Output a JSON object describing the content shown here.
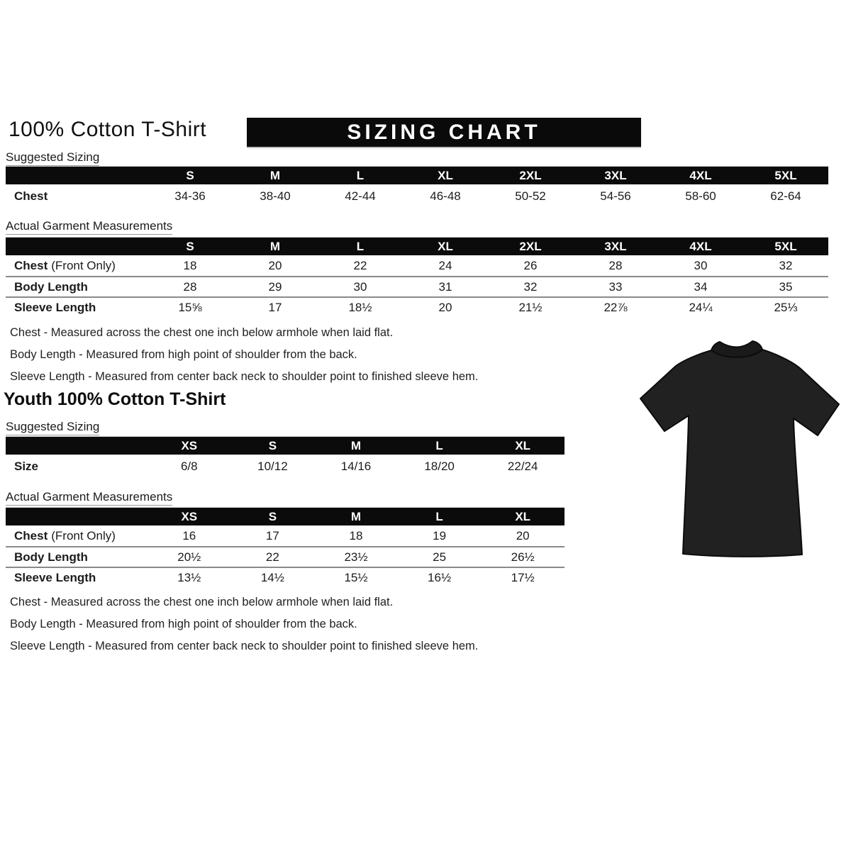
{
  "page": {
    "title": "100% Cotton T-Shirt",
    "banner": "SIZING CHART",
    "youth_title": "Youth 100% Cotton T-Shirt"
  },
  "colors": {
    "bar_black": "#0b0b0b",
    "tshirt": "#212121",
    "tshirt_outline": "#0c0c0c"
  },
  "tshirt": {
    "icon": "black-tshirt-photo",
    "color": "#212121"
  },
  "adult": {
    "suggested": {
      "label": "Suggested Sizing",
      "columns": [
        "S",
        "M",
        "L",
        "XL",
        "2XL",
        "3XL",
        "4XL",
        "5XL"
      ],
      "rows": [
        {
          "label_bold": "Chest",
          "label_rest": "",
          "values": [
            "34-36",
            "38-40",
            "42-44",
            "46-48",
            "50-52",
            "54-56",
            "58-60",
            "62-64"
          ]
        }
      ]
    },
    "actual": {
      "label": "Actual Garment Measurements",
      "columns": [
        "S",
        "M",
        "L",
        "XL",
        "2XL",
        "3XL",
        "4XL",
        "5XL"
      ],
      "rows": [
        {
          "label_bold": "Chest",
          "label_rest": "(Front Only)",
          "values": [
            "18",
            "20",
            "22",
            "24",
            "26",
            "28",
            "30",
            "32"
          ]
        },
        {
          "label_bold": "Body Length",
          "label_rest": "",
          "values": [
            "28",
            "29",
            "30",
            "31",
            "32",
            "33",
            "34",
            "35"
          ]
        },
        {
          "label_bold": "Sleeve Length",
          "label_rest": "",
          "values": [
            "15⅝",
            "17",
            "18½",
            "20",
            "21½",
            "22⅞",
            "24¼",
            "25⅓"
          ]
        }
      ]
    },
    "notes": [
      "Chest - Measured across the chest one inch below armhole when laid flat.",
      "Body Length - Measured from high point of shoulder from the back.",
      "Sleeve Length - Measured from center back neck to shoulder point to finished sleeve hem."
    ]
  },
  "youth": {
    "suggested": {
      "label": "Suggested Sizing",
      "columns": [
        "XS",
        "S",
        "M",
        "L",
        "XL"
      ],
      "rows": [
        {
          "label_bold": "Size",
          "label_rest": "",
          "values": [
            "6/8",
            "10/12",
            "14/16",
            "18/20",
            "22/24"
          ]
        }
      ]
    },
    "actual": {
      "label": "Actual Garment Measurements",
      "columns": [
        "XS",
        "S",
        "M",
        "L",
        "XL"
      ],
      "rows": [
        {
          "label_bold": "Chest",
          "label_rest": "(Front Only)",
          "values": [
            "16",
            "17",
            "18",
            "19",
            "20"
          ]
        },
        {
          "label_bold": "Body Length",
          "label_rest": "",
          "values": [
            "20½",
            "22",
            "23½",
            "25",
            "26½"
          ]
        },
        {
          "label_bold": "Sleeve Length",
          "label_rest": "",
          "values": [
            "13½",
            "14½",
            "15½",
            "16½",
            "17½"
          ]
        }
      ]
    },
    "notes": [
      "Chest - Measured across the chest one inch below armhole when laid flat.",
      "Body Length - Measured from high point of shoulder from the back.",
      "Sleeve Length - Measured from center back neck to shoulder point to finished sleeve hem."
    ]
  }
}
